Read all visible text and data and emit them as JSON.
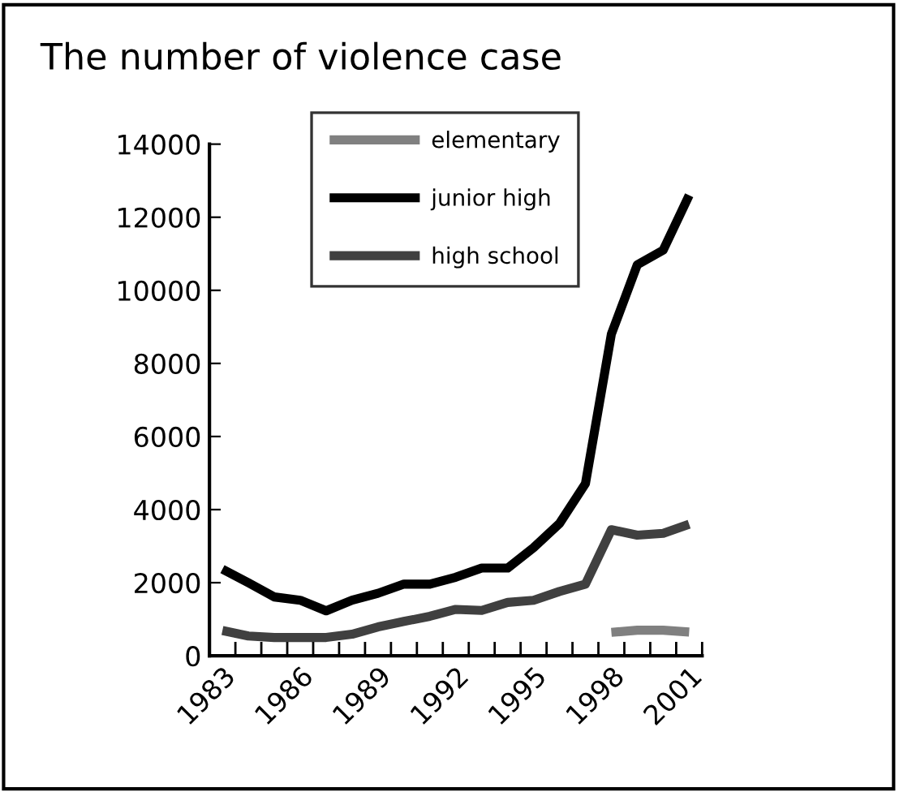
{
  "chart_data": {
    "type": "line",
    "title": "The number of violence case",
    "categories": [
      "1983",
      null,
      null,
      "1986",
      null,
      null,
      "1989",
      null,
      null,
      "1992",
      null,
      null,
      "1995",
      null,
      null,
      "1998",
      null,
      null,
      "2001"
    ],
    "series": [
      {
        "name": "elementary",
        "color": "#808080",
        "values": [
          null,
          null,
          null,
          null,
          null,
          null,
          null,
          null,
          null,
          null,
          null,
          null,
          null,
          null,
          null,
          640,
          700,
          700,
          650
        ]
      },
      {
        "name": "junior high",
        "color": "#000000",
        "values": [
          2370,
          2000,
          1610,
          1520,
          1230,
          1520,
          1710,
          1960,
          1960,
          2150,
          2400,
          2400,
          2960,
          3620,
          4710,
          8800,
          10700,
          11100,
          12600
        ]
      },
      {
        "name": "high school",
        "color": "#404040",
        "values": [
          690,
          540,
          500,
          500,
          500,
          590,
          790,
          940,
          1080,
          1270,
          1240,
          1460,
          1520,
          1760,
          1960,
          3450,
          3300,
          3350,
          3600
        ]
      }
    ],
    "ylim": [
      0,
      14000
    ],
    "yticks": [
      0,
      2000,
      4000,
      6000,
      8000,
      10000,
      12000,
      14000
    ],
    "grid": false,
    "legend": "top",
    "marker": "none",
    "line_style": "solid"
  }
}
